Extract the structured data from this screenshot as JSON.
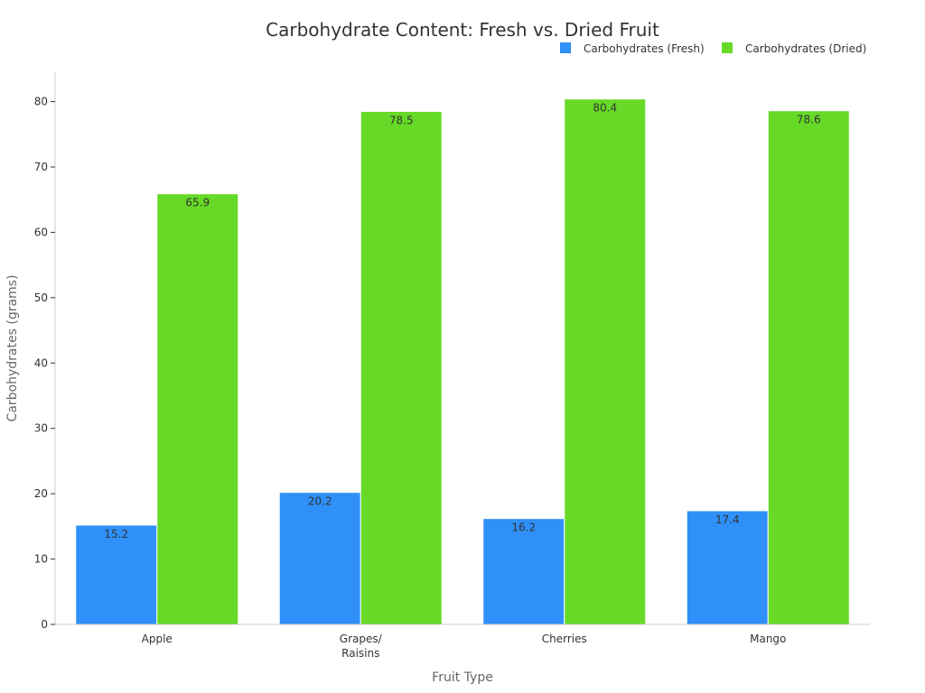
{
  "chart_data": {
    "type": "bar",
    "title": "Carbohydrate Content: Fresh vs. Dried Fruit",
    "xlabel": "Fruit Type",
    "ylabel": "Carbohydrates (grams)",
    "categories": [
      "Apple",
      "Grapes/\nRaisins",
      "Cherries",
      "Mango"
    ],
    "series": [
      {
        "name": "Carbohydrates (Fresh)",
        "color": "#2E90F8",
        "values": [
          15.2,
          20.2,
          16.2,
          17.4
        ]
      },
      {
        "name": "Carbohydrates (Dried)",
        "color": "#66DA26",
        "values": [
          65.9,
          78.5,
          80.4,
          78.6
        ]
      }
    ],
    "ylim": [
      0,
      84.5
    ],
    "yticks": [
      0,
      10,
      20,
      30,
      40,
      50,
      60,
      70,
      80
    ],
    "grid": false,
    "legend_position": "top-right",
    "data_labels": true
  }
}
